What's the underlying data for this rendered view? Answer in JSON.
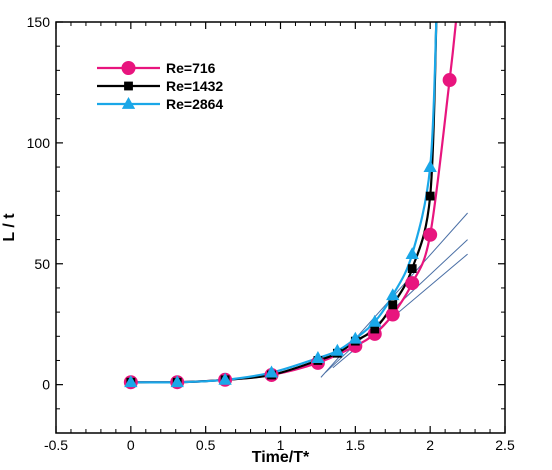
{
  "chart_data": {
    "type": "line",
    "xlabel": "Time/T*",
    "ylabel": "L / t",
    "xlim": [
      -0.5,
      2.5
    ],
    "ylim": [
      -20,
      150
    ],
    "xticks": [
      "-0.5",
      "0",
      "0.5",
      "1",
      "1.5",
      "2",
      "2.5"
    ],
    "yticks": [
      "0",
      "50",
      "100",
      "150"
    ],
    "grid": false,
    "legend_position": "top-left",
    "series": [
      {
        "name": "Re=716",
        "color": "#e8157e",
        "marker": "circle",
        "x": [
          0,
          0.31,
          0.63,
          0.94,
          1.25,
          1.5,
          1.63,
          1.75,
          1.88,
          2.0,
          2.13
        ],
        "y": [
          1,
          1,
          2,
          4,
          9,
          16,
          21,
          29,
          42,
          62,
          126
        ],
        "curve_extends_to_top": true
      },
      {
        "name": "Re=1432",
        "color": "#000000",
        "marker": "square",
        "x": [
          0,
          0.31,
          0.63,
          0.94,
          1.25,
          1.38,
          1.5,
          1.63,
          1.75,
          1.88,
          2.0
        ],
        "y": [
          1,
          1,
          2,
          4,
          10,
          13,
          18,
          23,
          33,
          48,
          78
        ],
        "curve_extends_to_top": true
      },
      {
        "name": "Re=2864",
        "color": "#1aa7e8",
        "marker": "triangle",
        "x": [
          0,
          0.31,
          0.63,
          0.94,
          1.25,
          1.38,
          1.5,
          1.63,
          1.75,
          1.88,
          2.0
        ],
        "y": [
          1,
          1,
          2,
          5,
          11,
          14,
          19,
          26,
          37,
          54,
          90
        ],
        "curve_extends_to_top": true
      }
    ],
    "tangent_lines": [
      {
        "color": "#4a6fa5",
        "x": [
          1.27,
          2.25
        ],
        "y": [
          3,
          71
        ]
      },
      {
        "color": "#4a6fa5",
        "x": [
          1.3,
          2.25
        ],
        "y": [
          5,
          60
        ]
      },
      {
        "color": "#4a6fa5",
        "x": [
          1.35,
          2.25
        ],
        "y": [
          7,
          54
        ]
      }
    ]
  }
}
